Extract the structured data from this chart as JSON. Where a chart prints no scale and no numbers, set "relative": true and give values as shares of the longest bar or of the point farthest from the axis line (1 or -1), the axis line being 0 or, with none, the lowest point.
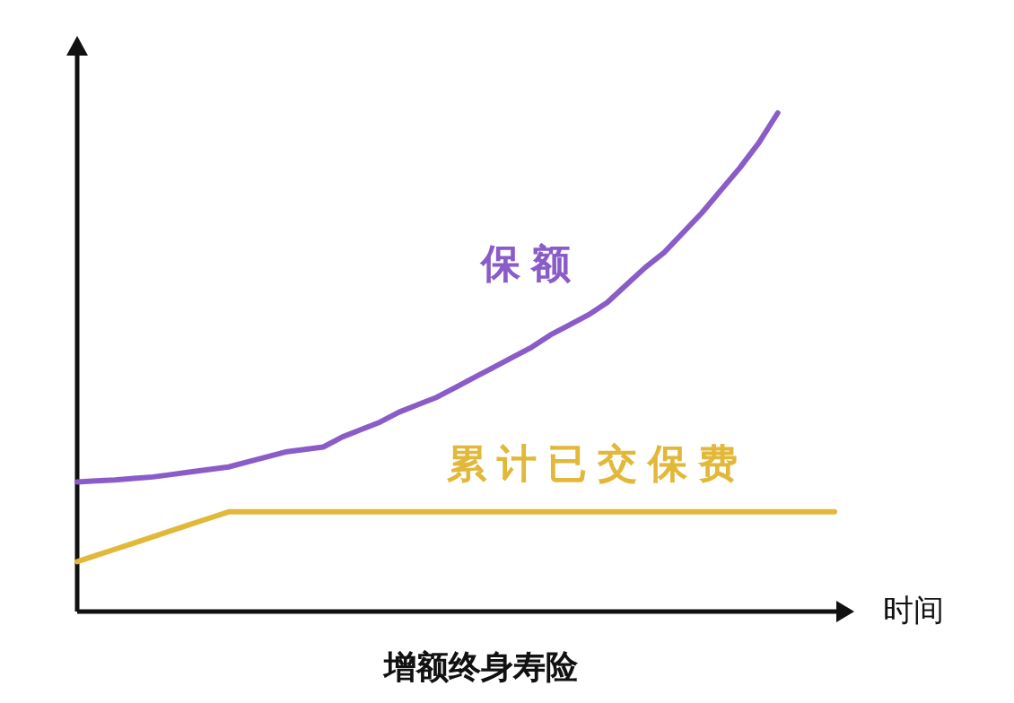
{
  "chart_data": {
    "type": "line",
    "title": "增额终身寿险",
    "xlabel": "时间",
    "relative": true,
    "categories": [
      null,
      null,
      null,
      null,
      null,
      null,
      null,
      null,
      null,
      null,
      null,
      null,
      null,
      null,
      null,
      null,
      null,
      null,
      null,
      null,
      null,
      null,
      null,
      null,
      null,
      null,
      null,
      null,
      null,
      null,
      null,
      null,
      null,
      null,
      null,
      null,
      null,
      null,
      null,
      null,
      null
    ],
    "series": [
      {
        "name": "保额",
        "color": "#8a5cc8",
        "values": [
          0.26,
          0.262,
          0.264,
          0.267,
          0.27,
          0.275,
          0.28,
          0.285,
          0.29,
          0.3,
          0.31,
          0.32,
          0.325,
          0.33,
          0.35,
          0.365,
          0.38,
          0.4,
          0.415,
          0.43,
          0.45,
          0.47,
          0.49,
          0.51,
          0.53,
          0.555,
          0.575,
          0.595,
          0.62,
          0.655,
          0.69,
          0.72,
          0.76,
          0.8,
          0.845,
          0.89,
          0.94,
          1.0,
          null,
          null,
          null
        ]
      },
      {
        "name": "累计已交保费",
        "color": "#e2b83a",
        "values": [
          0.1,
          0.1125,
          0.125,
          0.1375,
          0.15,
          0.1625,
          0.175,
          0.1875,
          0.2,
          0.2,
          0.2,
          0.2,
          0.2,
          0.2,
          0.2,
          0.2,
          0.2,
          0.2,
          0.2,
          0.2,
          0.2,
          0.2,
          0.2,
          0.2,
          0.2,
          0.2,
          0.2,
          0.2,
          0.2,
          0.2,
          0.2,
          0.2,
          0.2,
          0.2,
          0.2,
          0.2,
          0.2,
          0.2,
          0.2,
          0.2,
          0.2
        ]
      }
    ]
  }
}
